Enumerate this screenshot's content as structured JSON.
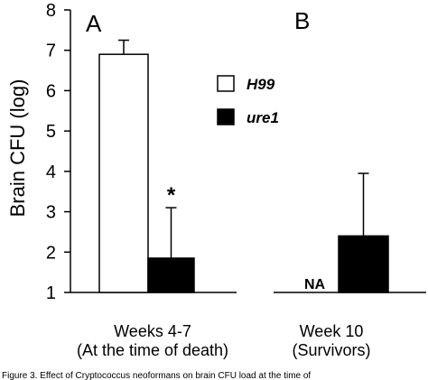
{
  "chart_data": {
    "type": "bar",
    "ylabel": "Brain CFU (log)",
    "ylim": [
      1,
      8
    ],
    "yticks": [
      "1",
      "2",
      "3",
      "4",
      "5",
      "6",
      "7",
      "8"
    ],
    "grid": false,
    "legend_position": "right",
    "panels": [
      {
        "label": "A",
        "xlabel_line1": "Weeks 4-7",
        "xlabel_line2": "(At the time of death)",
        "bars": [
          {
            "series": "H99",
            "value": 6.9,
            "error": 0.35,
            "color": "#ffffff",
            "annotation": ""
          },
          {
            "series": "ure1",
            "value": 1.85,
            "error": 1.25,
            "color": "#000000",
            "annotation": "*"
          }
        ]
      },
      {
        "label": "B",
        "xlabel_line1": "Week 10",
        "xlabel_line2": "(Survivors)",
        "bars": [
          {
            "series": "H99",
            "value": null,
            "error": null,
            "color": "#ffffff",
            "annotation": "NA"
          },
          {
            "series": "ure1",
            "value": 2.4,
            "error": 1.55,
            "color": "#000000",
            "annotation": ""
          }
        ]
      }
    ],
    "legend": [
      {
        "name": "H99",
        "color": "#ffffff"
      },
      {
        "name": "ure1",
        "color": "#000000"
      }
    ]
  },
  "caption": {
    "fragment": "Figure 3. Effect of Cryptococcus neoformans on brain CFU load at the time of"
  }
}
